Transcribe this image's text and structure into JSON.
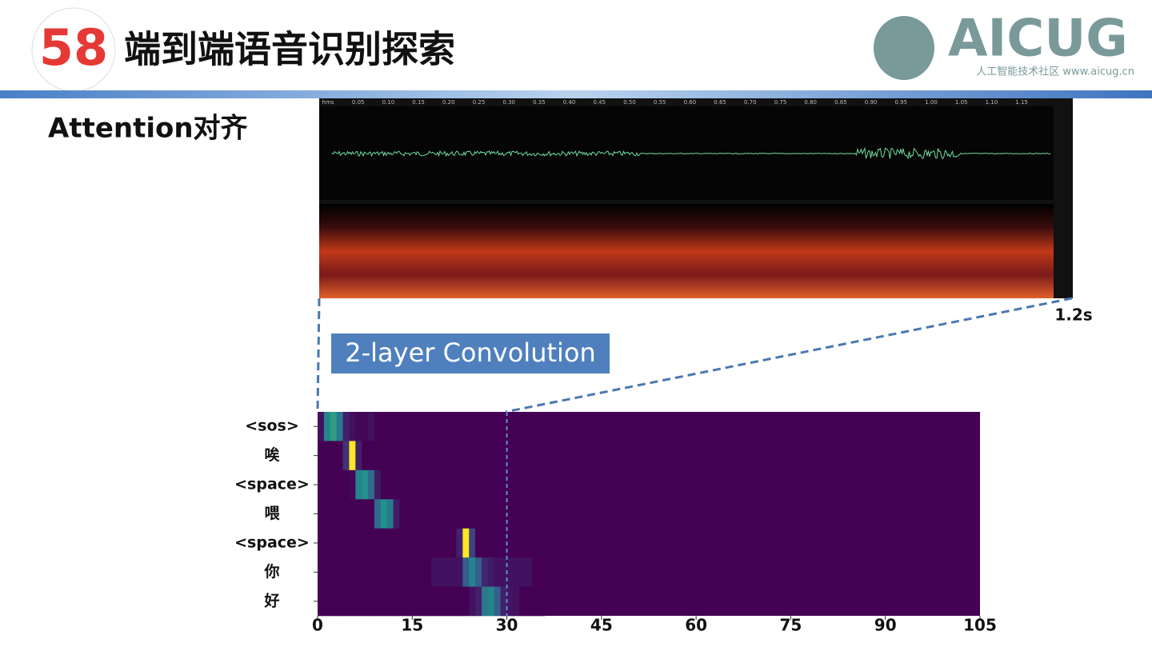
{
  "header": {
    "title": "端到端语音识别探索",
    "logo_number": "58",
    "brand": "AICUG",
    "brand_sub": "人工智能技术社区 www.aicug.cn"
  },
  "subtitle": "Attention对齐",
  "audio_panel": {
    "ruler": [
      "hms",
      "0.05",
      "0.10",
      "0.15",
      "0.20",
      "0.25",
      "0.30",
      "0.35",
      "0.40",
      "0.45",
      "0.50",
      "0.55",
      "0.60",
      "0.65",
      "0.70",
      "0.75",
      "0.80",
      "0.85",
      "0.90",
      "0.95",
      "1.00",
      "1.05",
      "1.10",
      "1.15"
    ],
    "duration_label": "1.2s"
  },
  "callout": "2-layer Convolution",
  "chart_data": {
    "type": "heatmap",
    "colormap": "viridis",
    "categories": [
      "<sos>",
      "唉",
      "<space>",
      "喂",
      "<space>",
      "你",
      "好"
    ],
    "xlim": [
      0,
      105
    ],
    "xticks": [
      0,
      15,
      30,
      45,
      60,
      75,
      90,
      105
    ],
    "vline": 30,
    "values": [
      [
        0.05,
        0.45,
        0.55,
        0.4,
        0.1,
        0.05,
        0.02,
        0.02,
        0.05,
        0,
        0,
        0,
        0,
        0,
        0,
        0,
        0,
        0,
        0,
        0,
        0,
        0,
        0,
        0,
        0,
        0,
        0,
        0,
        0,
        0,
        0,
        0,
        0,
        0,
        0,
        0
      ],
      [
        0,
        0,
        0,
        0,
        0.15,
        1,
        0.1,
        0,
        0,
        0,
        0,
        0,
        0,
        0,
        0,
        0,
        0,
        0,
        0,
        0,
        0,
        0,
        0,
        0,
        0,
        0,
        0,
        0,
        0,
        0,
        0,
        0,
        0,
        0,
        0,
        0
      ],
      [
        0,
        0,
        0,
        0,
        0,
        0.02,
        0.45,
        0.5,
        0.35,
        0.08,
        0,
        0,
        0,
        0,
        0,
        0,
        0,
        0,
        0,
        0,
        0,
        0,
        0,
        0,
        0,
        0,
        0,
        0,
        0,
        0,
        0,
        0,
        0,
        0,
        0,
        0
      ],
      [
        0,
        0,
        0,
        0,
        0,
        0,
        0,
        0,
        0,
        0.35,
        0.5,
        0.4,
        0.08,
        0,
        0,
        0,
        0,
        0,
        0,
        0,
        0,
        0,
        0,
        0,
        0,
        0,
        0,
        0,
        0,
        0,
        0,
        0,
        0,
        0,
        0,
        0
      ],
      [
        0,
        0,
        0,
        0,
        0,
        0,
        0,
        0,
        0,
        0,
        0,
        0,
        0,
        0,
        0,
        0,
        0,
        0,
        0,
        0,
        0,
        0,
        0.1,
        1,
        0.2,
        0,
        0,
        0,
        0,
        0,
        0,
        0,
        0,
        0,
        0,
        0
      ],
      [
        0,
        0,
        0,
        0,
        0,
        0,
        0,
        0,
        0,
        0,
        0,
        0,
        0,
        0,
        0,
        0,
        0,
        0,
        0.05,
        0.05,
        0.05,
        0.05,
        0.05,
        0.3,
        0.45,
        0.3,
        0.12,
        0.08,
        0.05,
        0.05,
        0.05,
        0.05,
        0.05,
        0.05,
        0,
        0
      ],
      [
        0,
        0,
        0,
        0,
        0,
        0,
        0,
        0,
        0,
        0,
        0,
        0,
        0,
        0,
        0,
        0,
        0,
        0,
        0,
        0,
        0,
        0,
        0,
        0,
        0.05,
        0.1,
        0.4,
        0.45,
        0.3,
        0.1,
        0.06,
        0.05,
        0,
        0,
        0,
        0
      ]
    ]
  }
}
